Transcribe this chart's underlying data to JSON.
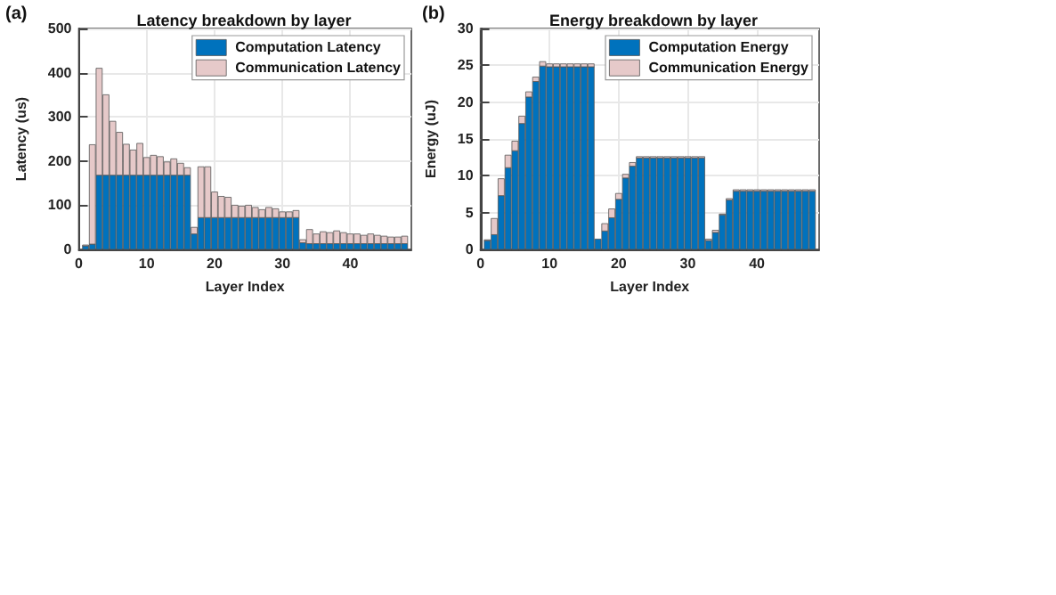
{
  "chart_data": [
    {
      "type": "bar",
      "title": "Latency breakdown by layer",
      "xlabel": "Layer Index",
      "ylabel": "Latency (us)",
      "annotations": [
        "(a)"
      ],
      "stacked": true,
      "legend": "top right",
      "grid": true,
      "x": [
        1,
        2,
        3,
        4,
        5,
        6,
        7,
        8,
        9,
        10,
        11,
        12,
        13,
        14,
        15,
        16,
        17,
        18,
        19,
        20,
        21,
        22,
        23,
        24,
        25,
        26,
        27,
        28,
        29,
        30,
        31,
        32,
        33,
        34,
        35,
        36,
        37,
        38,
        39,
        40,
        41,
        42,
        43,
        44,
        45,
        46,
        47,
        48
      ],
      "xlim": [
        0,
        49
      ],
      "xticks": [
        0,
        10,
        20,
        30,
        40
      ],
      "ylim": [
        0,
        500
      ],
      "yticks": [
        0,
        100,
        200,
        300,
        400,
        500
      ],
      "series": [
        {
          "name": "Computation Latency",
          "color": "#0072bd",
          "values": [
            8,
            12,
            168,
            168,
            168,
            168,
            168,
            168,
            168,
            168,
            168,
            168,
            168,
            168,
            168,
            168,
            35,
            72,
            72,
            72,
            72,
            72,
            72,
            72,
            72,
            72,
            72,
            72,
            72,
            72,
            72,
            72,
            15,
            13,
            13,
            13,
            13,
            13,
            13,
            13,
            13,
            13,
            13,
            13,
            13,
            13,
            13,
            13
          ]
        },
        {
          "name": "Communication Latency",
          "color": "#e6c9c9",
          "values": [
            2,
            225,
            242,
            182,
            122,
            97,
            70,
            57,
            72,
            40,
            45,
            42,
            30,
            37,
            27,
            17,
            15,
            115,
            115,
            58,
            48,
            46,
            28,
            26,
            28,
            23,
            18,
            23,
            20,
            13,
            13,
            16,
            7,
            32,
            22,
            27,
            25,
            29,
            25,
            22,
            22,
            19,
            22,
            19,
            17,
            15,
            15,
            17
          ]
        }
      ]
    },
    {
      "type": "bar",
      "title": "Energy breakdown by layer",
      "xlabel": "Layer Index",
      "ylabel": "Energy (uJ)",
      "annotations": [
        "(b)"
      ],
      "stacked": true,
      "legend": "top right",
      "grid": true,
      "x": [
        1,
        2,
        3,
        4,
        5,
        6,
        7,
        8,
        9,
        10,
        11,
        12,
        13,
        14,
        15,
        16,
        17,
        18,
        19,
        20,
        21,
        22,
        23,
        24,
        25,
        26,
        27,
        28,
        29,
        30,
        31,
        32,
        33,
        34,
        35,
        36,
        37,
        38,
        39,
        40,
        41,
        42,
        43,
        44,
        45,
        46,
        47,
        48
      ],
      "xlim": [
        0,
        49
      ],
      "xticks": [
        0,
        10,
        20,
        30,
        40
      ],
      "ylim": [
        0,
        30
      ],
      "yticks": [
        0,
        5,
        10,
        15,
        20,
        25,
        30
      ],
      "series": [
        {
          "name": "Computation Energy",
          "color": "#0072bd",
          "values": [
            1.2,
            2.0,
            7.3,
            11.1,
            13.4,
            17.1,
            20.7,
            22.8,
            24.9,
            24.8,
            24.8,
            24.8,
            24.8,
            24.8,
            24.8,
            24.8,
            1.4,
            2.5,
            4.3,
            6.8,
            9.7,
            11.3,
            12.4,
            12.4,
            12.4,
            12.4,
            12.4,
            12.4,
            12.4,
            12.4,
            12.4,
            12.4,
            1.2,
            2.3,
            4.7,
            6.7,
            7.9,
            7.9,
            7.9,
            7.9,
            7.9,
            7.9,
            7.9,
            7.9,
            7.9,
            7.9,
            7.9,
            7.9
          ]
        },
        {
          "name": "Communication Energy",
          "color": "#e6c9c9",
          "values": [
            0.1,
            2.2,
            2.3,
            1.7,
            1.3,
            1.0,
            0.7,
            0.6,
            0.6,
            0.4,
            0.4,
            0.4,
            0.4,
            0.4,
            0.4,
            0.4,
            null,
            1.0,
            1.2,
            0.8,
            0.5,
            0.5,
            0.2,
            0.2,
            0.2,
            0.2,
            0.2,
            0.2,
            0.2,
            0.2,
            0.2,
            0.2,
            0.2,
            0.3,
            0.1,
            0.2,
            0.2,
            0.2,
            0.2,
            0.2,
            0.2,
            0.2,
            0.2,
            0.2,
            0.2,
            0.2,
            0.2,
            0.2
          ]
        }
      ]
    }
  ]
}
